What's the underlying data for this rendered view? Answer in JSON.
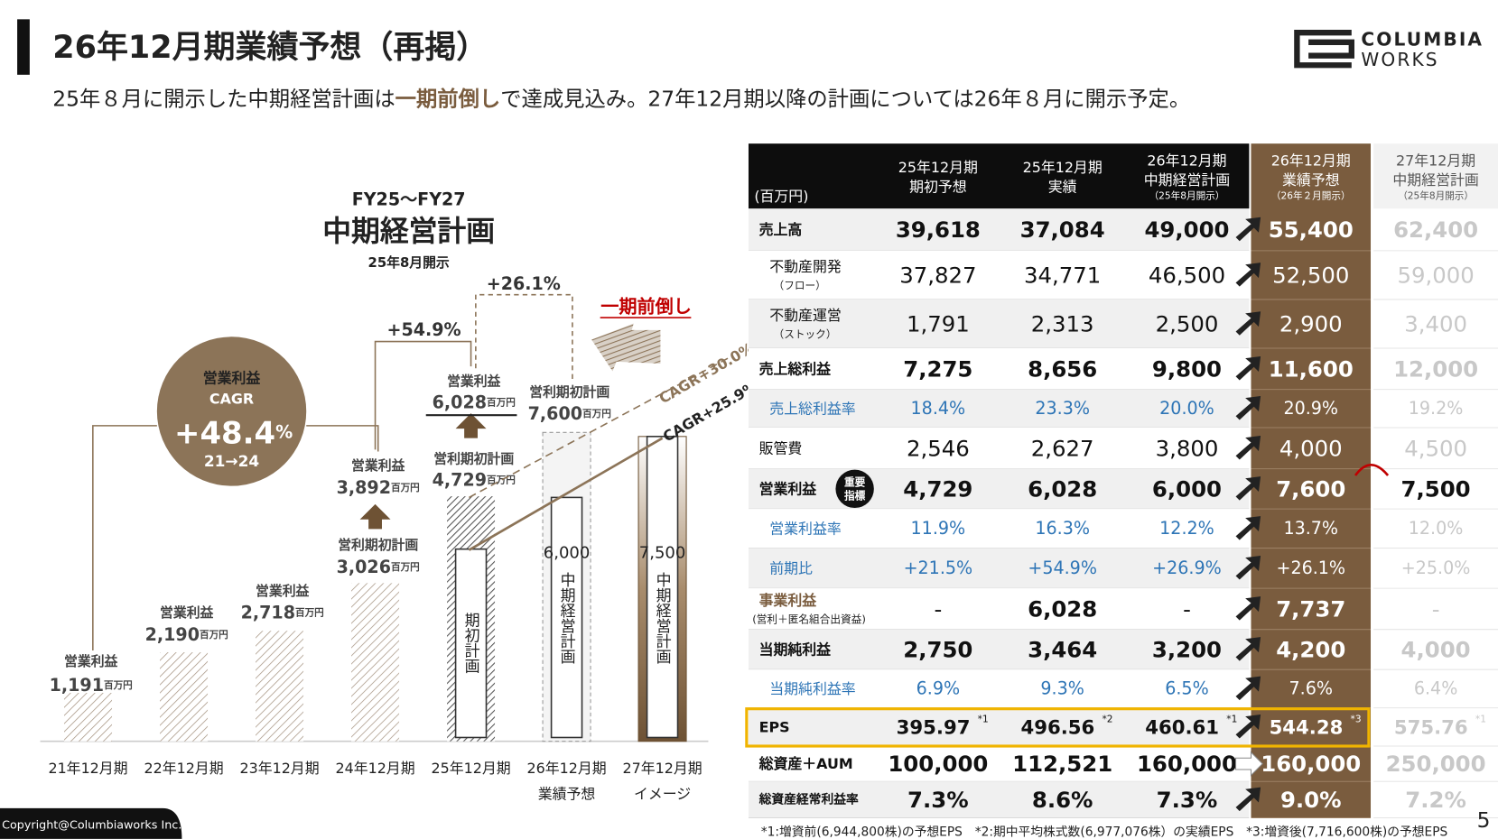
{
  "header": {
    "title": "26年12月期業績予想（再掲）",
    "subtitle_parts": [
      "25年８月に開示した中期経営計画は",
      "一期前倒し",
      "で達成見込み。27年12月期以降の計画については26年８月に開示予定。"
    ],
    "logo": [
      "COLUMBIA",
      "WORKS"
    ]
  },
  "chart": {
    "title": "FY25～FY27",
    "heading": "中期経営計画",
    "subheading": "25年8月開示",
    "categories": [
      "21年12月期",
      "22年12月期",
      "23年12月期",
      "24年12月期",
      "25年12月期",
      "26年12月期",
      "27年12月期"
    ],
    "category_notes": [
      null,
      null,
      null,
      null,
      null,
      "業績予想",
      "イメージ"
    ],
    "values": [
      1191,
      2190,
      2718,
      3892,
      6028,
      7600,
      7500
    ],
    "label_titles": [
      "営業利益",
      "営業利益",
      "営業利益",
      "営業利益",
      "営業利益",
      "営利期初計画",
      null
    ],
    "value_labels": [
      "1,191",
      "2,190",
      "2,718",
      "3,892",
      "6,028",
      "7,600",
      null
    ],
    "unit": "百万円",
    "plan_titles": [
      null,
      null,
      null,
      "営利期初計画",
      "営利期初計画",
      null,
      null
    ],
    "plan_title_values": [
      null,
      null,
      null,
      "3,026",
      "4,729",
      null,
      null
    ],
    "plan_values": [
      null,
      null,
      null,
      null,
      4729,
      6000,
      7500
    ],
    "plan_labels": [
      null,
      null,
      null,
      null,
      "期初計画",
      "中期経営計画",
      "中期経営計画"
    ],
    "plan_value_labels": [
      null,
      null,
      null,
      null,
      null,
      "6,000",
      "7,500"
    ],
    "growth_labels": [
      "+54.9%",
      "+26.1%"
    ],
    "advance_label": "一期前倒し",
    "cagr_lines": [
      "CAGR+30.0%",
      "CAGR+25.9%"
    ],
    "cagr_badge": {
      "title": "営業利益",
      "label": "CAGR",
      "value": "+48.4",
      "unit": "%",
      "period": "21→24"
    }
  },
  "table": {
    "unit": "(百万円)",
    "columns": [
      [
        "25年12月期",
        "期初予想"
      ],
      [
        "25年12月期",
        "実績"
      ],
      [
        "26年12月期",
        "中期経営計画",
        "（25年8月開示）"
      ],
      [
        "26年12月期",
        "業績予想",
        "（26年２月開示）"
      ],
      [
        "27年12月期",
        "中期経営計画",
        "（25年8月開示）"
      ]
    ],
    "rows": [
      {
        "label": "売上高",
        "cells": [
          "39,618",
          "37,084",
          "49,000",
          "55,400",
          "62,400"
        ]
      },
      {
        "label": "不動産開発",
        "sub": "（フロー）",
        "cells": [
          "37,827",
          "34,771",
          "46,500",
          "52,500",
          "59,000"
        ]
      },
      {
        "label": "不動産運営",
        "sub": "（ストック）",
        "cells": [
          "1,791",
          "2,313",
          "2,500",
          "2,900",
          "3,400"
        ]
      },
      {
        "label": "売上総利益",
        "cells": [
          "7,275",
          "8,656",
          "9,800",
          "11,600",
          "12,000"
        ]
      },
      {
        "label": "売上総利益率",
        "cells": [
          "18.4%",
          "23.3%",
          "20.0%",
          "20.9%",
          "19.2%"
        ]
      },
      {
        "label": "販管費",
        "cells": [
          "2,546",
          "2,627",
          "3,800",
          "4,000",
          "4,500"
        ]
      },
      {
        "label": "営業利益",
        "badge": [
          "重要",
          "指標"
        ],
        "cells": [
          "4,729",
          "6,028",
          "6,000",
          "7,600",
          "7,500"
        ]
      },
      {
        "label": "営業利益率",
        "cells": [
          "11.9%",
          "16.3%",
          "12.2%",
          "13.7%",
          "12.0%"
        ]
      },
      {
        "label": "前期比",
        "cells": [
          "+21.5%",
          "+54.9%",
          "+26.9%",
          "+26.1%",
          "+25.0%"
        ]
      },
      {
        "label": "事業利益",
        "sub": "(営利＋匿名組合出資益)",
        "cells": [
          "-",
          "6,028",
          "-",
          "7,737",
          "-"
        ]
      },
      {
        "label": "当期純利益",
        "cells": [
          "2,750",
          "3,464",
          "3,200",
          "4,200",
          "4,000"
        ]
      },
      {
        "label": "当期純利益率",
        "cells": [
          "6.9%",
          "9.3%",
          "6.5%",
          "7.6%",
          "6.4%"
        ]
      },
      {
        "label": "EPS",
        "cells": [
          "395.97",
          "496.56",
          "460.61",
          "544.28",
          "575.76"
        ],
        "notes": [
          "*1",
          "*2",
          "*1",
          "*3",
          "*1"
        ]
      },
      {
        "label": "総資産＋AUM",
        "cells": [
          "100,000",
          "112,521",
          "160,000",
          "160,000",
          "250,000"
        ]
      },
      {
        "label": "総資産経常利益率",
        "cells": [
          "7.3%",
          "8.6%",
          "7.3%",
          "9.0%",
          "7.2%"
        ]
      }
    ],
    "footnote": "*1:増資前(6,944,800株)の予想EPS　*2:期中平均株式数(6,977,076株）の実績EPS　*3:増資後(7,716,600株)の予想EPS"
  },
  "footer": {
    "copyright": "Copyright@Columbiaworks Inc.",
    "page": "5"
  }
}
